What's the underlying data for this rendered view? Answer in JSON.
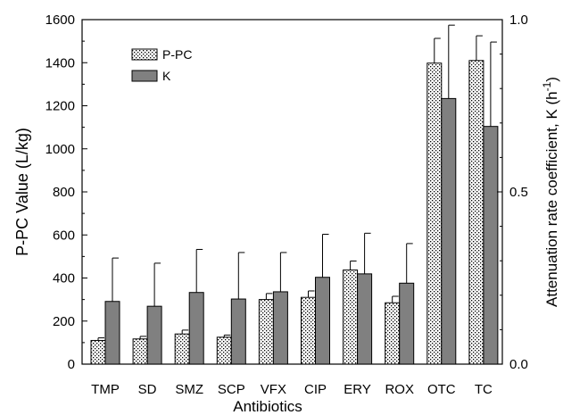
{
  "chart_data": {
    "type": "bar",
    "categories": [
      "TMP",
      "SD",
      "SMZ",
      "SCP",
      "VFX",
      "CIP",
      "ERY",
      "ROX",
      "OTC",
      "TC"
    ],
    "xlabel": "Antibiotics",
    "ylabel_left": "P-PC Value (L/kg)",
    "ylabel_right_main": "Attenuation rate coefficient, K (h",
    "ylabel_right_sup": "-1",
    "ylabel_right_close": ")",
    "ylim_left": [
      0,
      1600
    ],
    "yticks_left": [
      "0",
      "200",
      "400",
      "600",
      "800",
      "1000",
      "1200",
      "1400",
      "1600"
    ],
    "ylim_right": [
      0,
      1.0
    ],
    "yticks_right": [
      "0.0",
      "0.5",
      "1.0"
    ],
    "grid": false,
    "legend_position": "top-left",
    "series": [
      {
        "name": "P-PC",
        "axis": "left",
        "pattern": "dotted",
        "values": [
          110,
          117,
          140,
          125,
          300,
          310,
          437,
          285,
          1398,
          1410
        ],
        "errors": [
          12,
          12,
          18,
          10,
          28,
          30,
          42,
          30,
          115,
          115
        ]
      },
      {
        "name": "K",
        "axis": "right",
        "color": "#808080",
        "values": [
          0.182,
          0.168,
          0.208,
          0.189,
          0.21,
          0.252,
          0.262,
          0.235,
          0.771,
          0.69
        ],
        "errors": [
          0.126,
          0.125,
          0.125,
          0.135,
          0.114,
          0.125,
          0.118,
          0.115,
          0.213,
          0.245
        ]
      }
    ]
  }
}
